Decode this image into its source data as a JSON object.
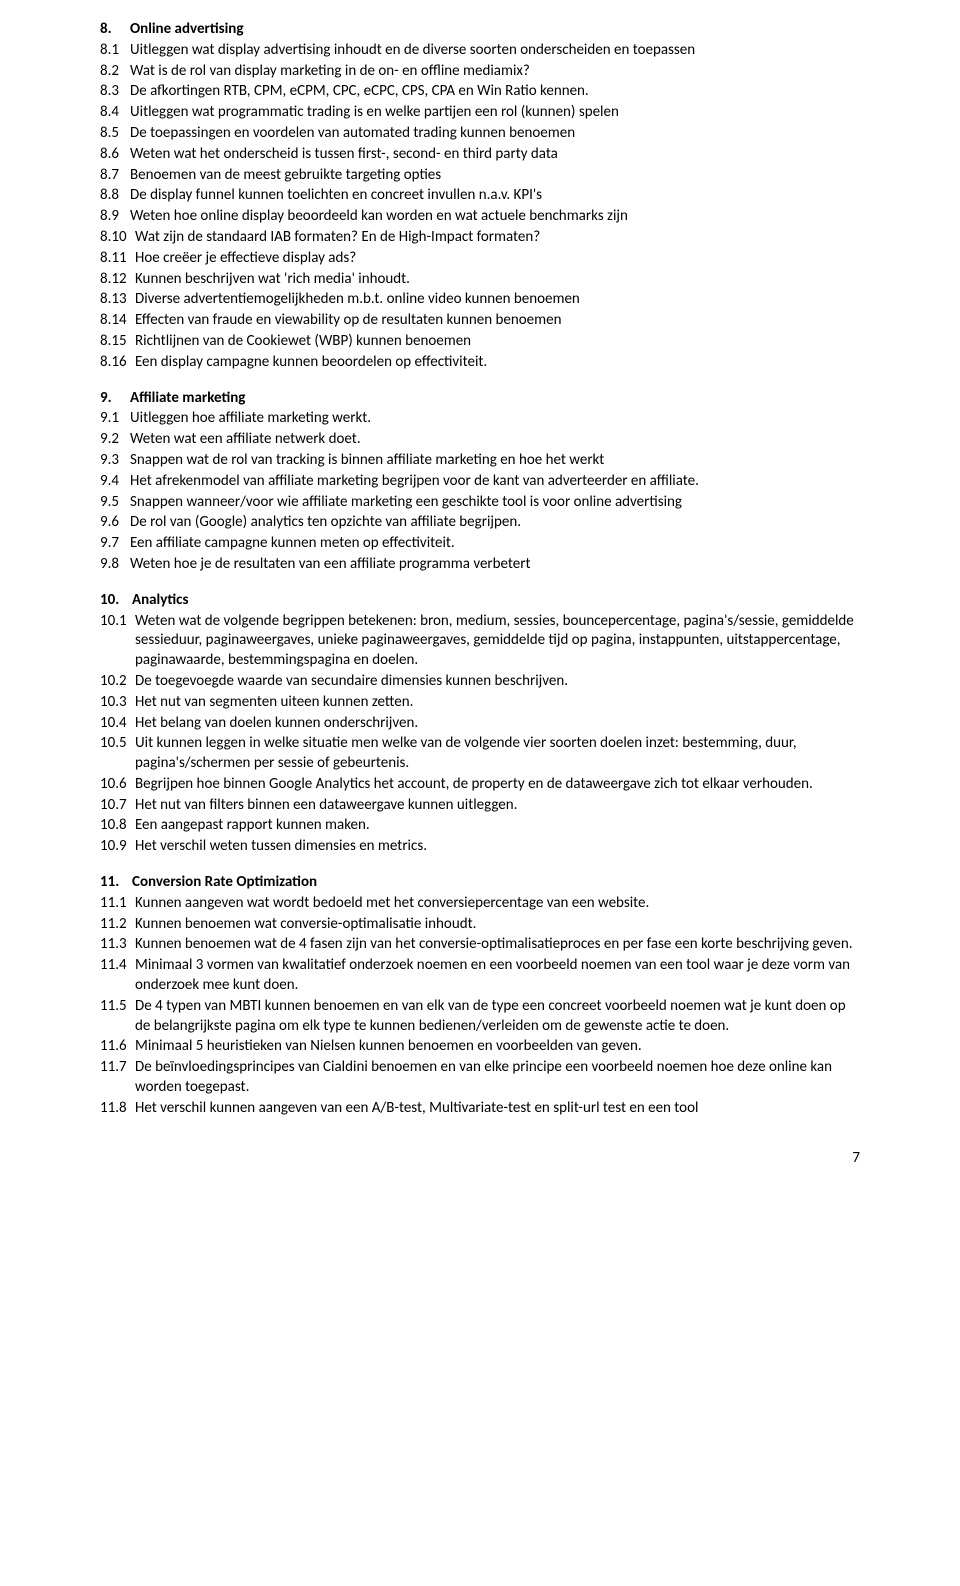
{
  "sections": [
    {
      "num": "8.",
      "title": "Online advertising",
      "numWidth": "w1",
      "items": [
        {
          "num": "8.1",
          "w": "w1",
          "text": "Uitleggen wat display advertising inhoudt en de diverse soorten onderscheiden en toepassen"
        },
        {
          "num": "8.2",
          "w": "w1",
          "text": "Wat is de rol van display marketing in de on- en offline mediamix?"
        },
        {
          "num": "8.3",
          "w": "w1",
          "text": "De afkortingen RTB, CPM, eCPM, CPC, eCPC, CPS, CPA en Win Ratio kennen."
        },
        {
          "num": "8.4",
          "w": "w1",
          "text": "Uitleggen wat programmatic trading is en welke partijen een rol (kunnen) spelen"
        },
        {
          "num": "8.5",
          "w": "w1",
          "text": "De toepassingen en voordelen van automated trading kunnen benoemen"
        },
        {
          "num": "8.6",
          "w": "w1",
          "text": "Weten wat het onderscheid is tussen first-, second- en third party data"
        },
        {
          "num": "8.7",
          "w": "w1",
          "text": "Benoemen van de meest gebruikte targeting opties"
        },
        {
          "num": "8.8",
          "w": "w1",
          "text": "De display funnel kunnen toelichten en concreet invullen n.a.v. KPI's"
        },
        {
          "num": "8.9",
          "w": "w1",
          "text": "Weten hoe online display beoordeeld kan worden en wat actuele benchmarks zijn"
        },
        {
          "num": "8.10",
          "w": "w2",
          "text": "Wat zijn de standaard IAB formaten?  En de High-Impact formaten?"
        },
        {
          "num": "8.11",
          "w": "w2",
          "text": "Hoe creëer je effectieve display ads?"
        },
        {
          "num": "8.12",
          "w": "w2",
          "text": "Kunnen beschrijven wat 'rich media' inhoudt."
        },
        {
          "num": "8.13",
          "w": "w2",
          "text": "Diverse advertentiemogelijkheden m.b.t. online video kunnen benoemen"
        },
        {
          "num": "8.14",
          "w": "w2",
          "text": "Effecten van fraude en viewability op de resultaten kunnen benoemen"
        },
        {
          "num": "8.15",
          "w": "w2",
          "text": "Richtlijnen van de Cookiewet (WBP) kunnen benoemen"
        },
        {
          "num": "8.16",
          "w": "w2",
          "text": "Een display campagne kunnen beoordelen op effectiviteit."
        }
      ]
    },
    {
      "num": "9.",
      "title": "Affiliate marketing",
      "numWidth": "w1",
      "items": [
        {
          "num": "9.1",
          "w": "w1",
          "text": "Uitleggen hoe affiliate marketing werkt."
        },
        {
          "num": "9.2",
          "w": "w1",
          "text": "Weten wat een affiliate netwerk doet."
        },
        {
          "num": "9.3",
          "w": "w1",
          "text": "Snappen wat de rol van tracking is binnen affiliate marketing en hoe het werkt"
        },
        {
          "num": "9.4",
          "w": "w1",
          "text": "Het afrekenmodel van affiliate marketing begrijpen voor de kant van adverteerder en affiliate."
        },
        {
          "num": "9.5",
          "w": "w1",
          "text": "Snappen wanneer/voor wie affiliate marketing een geschikte tool is voor online advertising"
        },
        {
          "num": "9.6",
          "w": "w1",
          "text": "De rol van (Google) analytics ten opzichte van affiliate begrijpen."
        },
        {
          "num": "9.7",
          "w": "w1",
          "text": "Een affiliate campagne kunnen meten op effectiviteit."
        },
        {
          "num": "9.8",
          "w": "w1",
          "text": "Weten hoe je de resultaten van een affiliate programma verbetert"
        }
      ]
    },
    {
      "num": "10.",
      "title": "Analytics",
      "numWidth": "w2",
      "items": [
        {
          "num": "10.1",
          "w": "w2",
          "text": "Weten wat de volgende  begrippen betekenen: bron, medium, sessies, bouncepercentage, pagina's/sessie, gemiddelde sessieduur, paginaweergaves, unieke paginaweergaves, gemiddelde tijd op pagina, instappunten, uitstappercentage, paginawaarde, bestemmingspagina en doelen."
        },
        {
          "num": "10.2",
          "w": "w2",
          "text": "De toegevoegde waarde van secundaire dimensies kunnen beschrijven."
        },
        {
          "num": "10.3",
          "w": "w2",
          "text": "Het nut van segmenten uiteen kunnen zetten."
        },
        {
          "num": "10.4",
          "w": "w2",
          "text": "Het belang van doelen kunnen onderschrijven."
        },
        {
          "num": "10.5",
          "w": "w2",
          "text": "Uit kunnen leggen in welke situatie men welke van de volgende vier soorten doelen inzet: bestemming, duur, pagina's/schermen per sessie of gebeurtenis."
        },
        {
          "num": "10.6",
          "w": "w2",
          "text": "Begrijpen hoe binnen Google Analytics het account, de property en de dataweergave zich tot elkaar verhouden."
        },
        {
          "num": "10.7",
          "w": "w2",
          "text": "Het nut van filters binnen een dataweergave kunnen uitleggen."
        },
        {
          "num": "10.8",
          "w": "w2",
          "text": "Een aangepast rapport kunnen maken."
        },
        {
          "num": "10.9",
          "w": "w2",
          "text": "Het verschil weten tussen dimensies en metrics."
        }
      ]
    },
    {
      "num": "11.",
      "title": "Conversion Rate Optimization",
      "numWidth": "w2",
      "items": [
        {
          "num": "11.1",
          "w": "w2",
          "text": "Kunnen aangeven wat wordt bedoeld met het conversiepercentage van een website."
        },
        {
          "num": "11.2",
          "w": "w2",
          "text": "Kunnen benoemen wat conversie-optimalisatie inhoudt."
        },
        {
          "num": "11.3",
          "w": "w2",
          "text": "Kunnen benoemen wat de 4 fasen zijn van het conversie-optimalisatieproces en per fase een korte beschrijving geven."
        },
        {
          "num": "11.4",
          "w": "w2",
          "text": "Minimaal 3 vormen van kwalitatief onderzoek noemen en een voorbeeld noemen van een tool waar je deze vorm van onderzoek mee kunt doen."
        },
        {
          "num": "11.5",
          "w": "w2",
          "text": "De 4 typen van MBTI kunnen benoemen en van elk van de type een concreet voorbeeld noemen wat je kunt doen op de belangrijkste pagina om elk type te kunnen bedienen/verleiden om de gewenste actie te doen."
        },
        {
          "num": "11.6",
          "w": "w2",
          "text": "Minimaal 5 heuristieken van Nielsen kunnen benoemen en voorbeelden van geven."
        },
        {
          "num": "11.7",
          "w": "w2",
          "text": "De beïnvloedingsprincipes van Cialdini benoemen en van elke principe een voorbeeld noemen hoe deze online kan worden toegepast."
        },
        {
          "num": "11.8",
          "w": "w2",
          "text": "Het verschil kunnen aangeven van een A/B-test, Multivariate-test en split-url test en een tool"
        }
      ]
    }
  ],
  "pageNumber": "7"
}
